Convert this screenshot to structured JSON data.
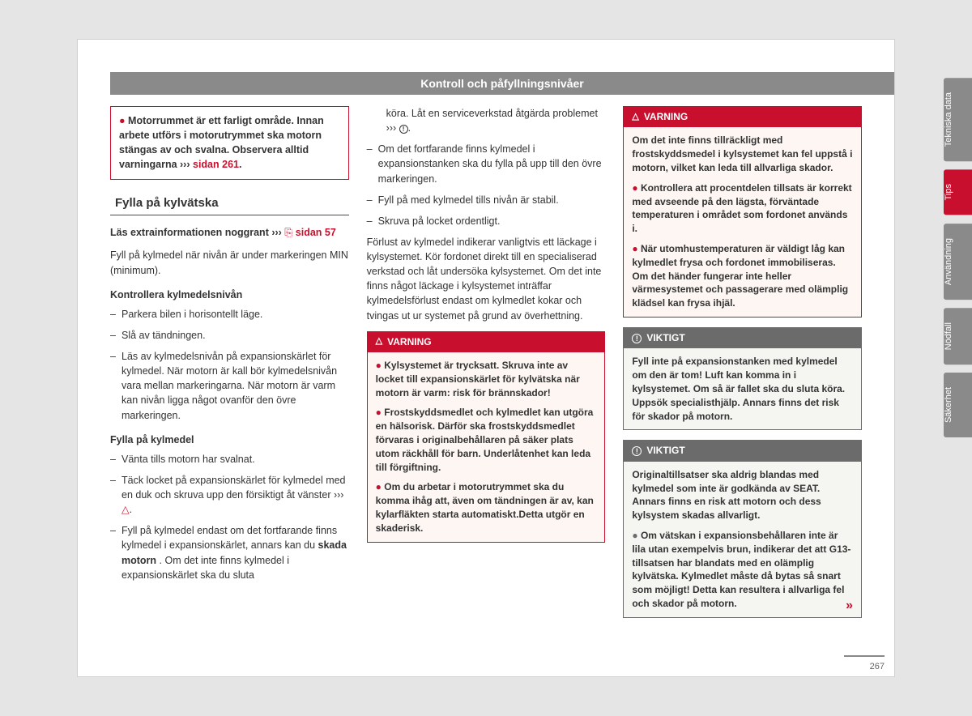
{
  "header": {
    "title": "Kontroll och påfyllningsnivåer"
  },
  "page_number": "267",
  "sidetabs": [
    {
      "label": "Tekniska data",
      "active": false
    },
    {
      "label": "Tips",
      "active": true
    },
    {
      "label": "Användning",
      "active": false
    },
    {
      "label": "Nödfall",
      "active": false
    },
    {
      "label": "Säkerhet",
      "active": false
    }
  ],
  "col1": {
    "topbox": {
      "text_before": "Motorrummet är ett farligt område. Innan arbete utförs i motorutrymmet ska motorn stängas av och svalna. Observera alltid varningarna ››› ",
      "link": "sidan 261",
      "after": "."
    },
    "section_title": "Fylla på kylvätska",
    "lead_before": "Läs extrainformationen noggrant ››› ",
    "lead_link": "sidan 57",
    "intro": "Fyll på kylmedel när nivån är under markeringen MIN (minimum).",
    "sub1": "Kontrollera kylmedelsnivån",
    "sub1_items": [
      "Parkera bilen i horisontellt läge.",
      "Slå av tändningen.",
      "Läs av kylmedelsnivån på expansionskärlet för kylmedel. När motorn är kall bör kylmedelsnivån vara mellan markeringarna. När motorn är varm kan nivån ligga något ovanför den övre markeringen."
    ],
    "sub2": "Fylla på kylmedel",
    "sub2_items": [
      {
        "text": "Vänta tills motorn har svalnat."
      },
      {
        "text": "Täck locket på expansionskärlet för kylmedel med en duk och skruva upp den försiktigt åt vänster  ››› ",
        "tri": true
      },
      {
        "text_before": "Fyll på kylmedel endast om det fortfarande finns kylmedel i expansionskärlet, annars kan du ",
        "bold": "skada motorn",
        "text_after": ". Om det inte finns kylmedel i expansionskärlet ska du sluta"
      }
    ]
  },
  "col2": {
    "cont_items": [
      {
        "text": "köra. Låt en serviceverkstad åtgärda problemet ››› ",
        "info": true
      },
      {
        "text": "Om det fortfarande finns kylmedel i expansionstanken ska du fylla på upp till den övre markeringen."
      },
      {
        "text": "Fyll på med kylmedel tills nivån är stabil."
      },
      {
        "text": "Skruva på locket ordentligt."
      }
    ],
    "para": "Förlust av kylmedel indikerar vanligtvis ett läckage i kylsystemet. Kör fordonet direkt till en specialiserad verkstad och låt undersöka kylsystemet. Om det inte finns något läckage i kylsystemet inträffar kylmedelsförlust endast om kylmedlet kokar och tvingas ut ur systemet på grund av överhettning.",
    "warn_title": "VARNING",
    "warn_items": [
      "Kylsystemet är trycksatt. Skruva inte av locket till expansionskärlet för kylvätska när motorn är varm: risk för brännskador!",
      "Frostskyddsmedlet och kylmedlet kan utgöra en hälsorisk. Därför ska frostskyddsmedlet förvaras i originalbehållaren på säker plats utom räckhåll för barn. Underlåtenhet kan leda till förgiftning.",
      "Om du arbetar i motorutrymmet ska du komma ihåg att, även om tändningen är av, kan kylarfläkten starta automatiskt.Detta utgör en skaderisk."
    ]
  },
  "col3": {
    "warn_title": "VARNING",
    "warn_intro": "Om det inte finns tillräckligt med frostskyddsmedel i kylsystemet kan fel uppstå i motorn, vilket kan leda till allvarliga skador.",
    "warn_items": [
      "Kontrollera att procentdelen tillsats är korrekt med avseende på den lägsta, förväntade temperaturen i området som fordonet används i.",
      "När utomhustemperaturen är väldigt låg kan kylmedlet frysa och fordonet immobiliseras. Om det händer fungerar inte heller värmesystemet och passagerare med olämplig klädsel kan frysa ihjäl."
    ],
    "imp1_title": "VIKTIGT",
    "imp1_text": "Fyll inte på expansionstanken med kylmedel om den är tom! Luft kan komma in i kylsystemet. Om så är fallet ska du sluta köra. Uppsök specialisthjälp. Annars finns det risk för skador på motorn.",
    "imp2_title": "VIKTIGT",
    "imp2_text": "Originaltillsatser ska aldrig blandas med kylmedel som inte är godkända av SEAT. Annars finns en risk att motorn och dess kylsystem skadas allvarligt.",
    "imp2_bullet": "Om vätskan i expansionsbehållaren inte är lila utan exempelvis brun, indikerar det att G13-tillsatsen har blandats med en olämplig kylvätska. Kylmedlet måste då bytas så snart som möjligt! Detta kan resultera i allvarliga fel och skador på motorn."
  }
}
